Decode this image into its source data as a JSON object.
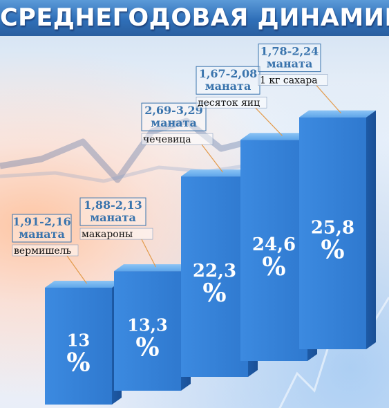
{
  "header": {
    "title": "СРЕДНЕГОДОВАЯ ДИНАМИКА"
  },
  "colors": {
    "bar_front": "#2f79cf",
    "bar_top": "#5fa6ea",
    "bar_side": "#1d5aa6",
    "label_blue": "#3a74ad",
    "callout_line": "#e39a4a"
  },
  "chart_data": {
    "type": "bar",
    "title": "СРЕДНЕГОДОВАЯ ДИНАМИКА",
    "categories": [
      "вермишель",
      "макароны",
      "чечевица",
      "десяток яиц",
      "1 кг сахара"
    ],
    "values": [
      13,
      13.3,
      22.3,
      24.6,
      25.8
    ],
    "value_labels": [
      "13",
      "13,3",
      "22,3",
      "24,6",
      "25,8"
    ],
    "unit": "%",
    "price_ranges": [
      "1,91-2,16",
      "1,88-2,13",
      "2,69-3,29",
      "1,67-2,08",
      "1,78-2,24"
    ],
    "price_unit": "маната",
    "grid": false,
    "legend": "none"
  }
}
